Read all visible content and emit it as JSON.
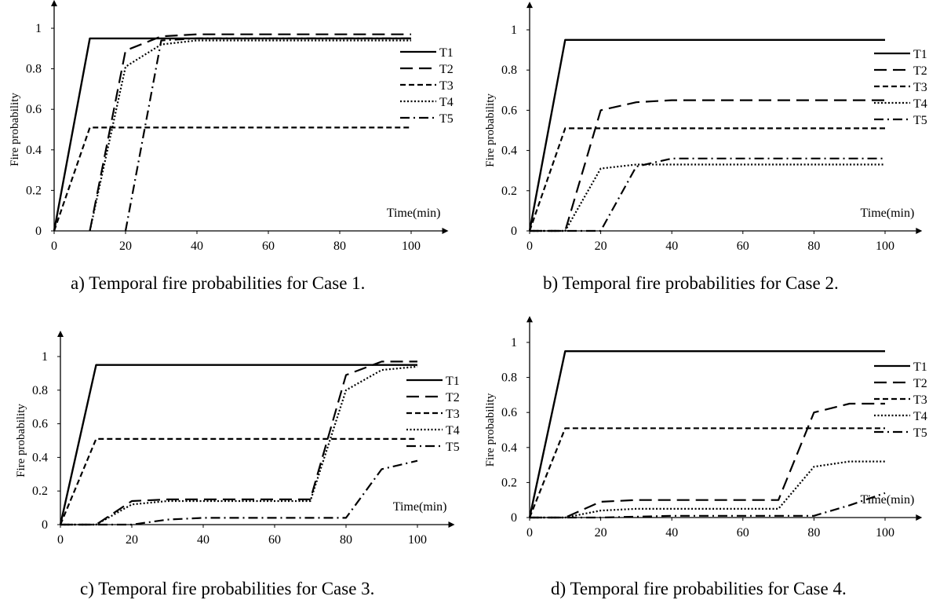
{
  "chart_data": [
    {
      "type": "line",
      "caption": "a) Temporal fire probabilities for Case 1.",
      "ylabel": "Fire probability",
      "xlabel": "Time(min)",
      "xticks": [
        0,
        20,
        40,
        60,
        80,
        100
      ],
      "yticks": [
        "0",
        "0.2",
        "0.4",
        "0.6",
        "0.8",
        "1"
      ],
      "xlim": [
        0,
        110
      ],
      "ylim": [
        0,
        1.07
      ],
      "legend_position": "right",
      "series": [
        {
          "name": "T1",
          "style": "solid",
          "x": [
            0,
            10,
            100
          ],
          "y": [
            0,
            0.95,
            0.95
          ]
        },
        {
          "name": "T2",
          "style": "long-dash",
          "x": [
            10,
            20,
            30,
            40,
            100
          ],
          "y": [
            0,
            0.89,
            0.96,
            0.97,
            0.97
          ]
        },
        {
          "name": "T3",
          "style": "dash",
          "x": [
            0,
            10,
            100
          ],
          "y": [
            0,
            0.51,
            0.51
          ]
        },
        {
          "name": "T4",
          "style": "dot",
          "x": [
            10,
            20,
            30,
            40,
            100
          ],
          "y": [
            0,
            0.81,
            0.92,
            0.94,
            0.94
          ]
        },
        {
          "name": "T5",
          "style": "dash-dot",
          "x": [
            20,
            30,
            40,
            100
          ],
          "y": [
            0,
            0.94,
            0.95,
            0.95
          ]
        }
      ]
    },
    {
      "type": "line",
      "caption": "b) Temporal fire probabilities for Case 2.",
      "ylabel": "Fire probability",
      "xlabel": "Time(min)",
      "xticks": [
        0,
        20,
        40,
        60,
        80,
        100
      ],
      "yticks": [
        "0",
        "0.2",
        "0.4",
        "0.6",
        "0.8",
        "1"
      ],
      "xlim": [
        0,
        110
      ],
      "ylim": [
        0,
        1.07
      ],
      "legend_position": "right",
      "series": [
        {
          "name": "T1",
          "style": "solid",
          "x": [
            0,
            10,
            100
          ],
          "y": [
            0,
            0.95,
            0.95
          ]
        },
        {
          "name": "T2",
          "style": "long-dash",
          "x": [
            0,
            10,
            20,
            30,
            40,
            100
          ],
          "y": [
            0,
            0,
            0.6,
            0.64,
            0.65,
            0.65
          ]
        },
        {
          "name": "T3",
          "style": "dash",
          "x": [
            0,
            10,
            100
          ],
          "y": [
            0,
            0.51,
            0.51
          ]
        },
        {
          "name": "T4",
          "style": "dot",
          "x": [
            0,
            10,
            20,
            30,
            100
          ],
          "y": [
            0,
            0,
            0.31,
            0.33,
            0.33
          ]
        },
        {
          "name": "T5",
          "style": "dash-dot",
          "x": [
            0,
            20,
            30,
            40,
            100
          ],
          "y": [
            0,
            0,
            0.32,
            0.36,
            0.36
          ]
        }
      ]
    },
    {
      "type": "line",
      "caption": "c) Temporal fire probabilities for Case 3.",
      "ylabel": "Fire probability",
      "xlabel": "Time(min)",
      "xticks": [
        0,
        20,
        40,
        60,
        80,
        100
      ],
      "yticks": [
        "0",
        "0.2",
        "0.4",
        "0.6",
        "0.8",
        "1"
      ],
      "xlim": [
        0,
        110
      ],
      "ylim": [
        0,
        1.07
      ],
      "legend_position": "right",
      "series": [
        {
          "name": "T1",
          "style": "solid",
          "x": [
            0,
            10,
            100
          ],
          "y": [
            0,
            0.95,
            0.95
          ]
        },
        {
          "name": "T2",
          "style": "long-dash",
          "x": [
            0,
            10,
            20,
            30,
            70,
            80,
            90,
            100
          ],
          "y": [
            0,
            0,
            0.14,
            0.15,
            0.15,
            0.89,
            0.97,
            0.97
          ]
        },
        {
          "name": "T3",
          "style": "dash",
          "x": [
            0,
            10,
            100
          ],
          "y": [
            0,
            0.51,
            0.51
          ]
        },
        {
          "name": "T4",
          "style": "dot",
          "x": [
            0,
            10,
            20,
            30,
            70,
            80,
            90,
            100
          ],
          "y": [
            0,
            0,
            0.12,
            0.14,
            0.14,
            0.8,
            0.92,
            0.94
          ]
        },
        {
          "name": "T5",
          "style": "dash-dot",
          "x": [
            0,
            20,
            30,
            40,
            80,
            90,
            100
          ],
          "y": [
            0,
            0,
            0.03,
            0.04,
            0.04,
            0.33,
            0.38
          ]
        }
      ]
    },
    {
      "type": "line",
      "caption": "d) Temporal fire probabilities for Case 4.",
      "ylabel": "Fire probability",
      "xlabel": "Time(min)",
      "xticks": [
        0,
        20,
        40,
        60,
        80,
        100
      ],
      "yticks": [
        "0",
        "0.2",
        "0.4",
        "0.6",
        "0.8",
        "1"
      ],
      "xlim": [
        0,
        110
      ],
      "ylim": [
        0,
        1.07
      ],
      "legend_position": "right",
      "series": [
        {
          "name": "T1",
          "style": "solid",
          "x": [
            0,
            10,
            100
          ],
          "y": [
            0,
            0.95,
            0.95
          ]
        },
        {
          "name": "T2",
          "style": "long-dash",
          "x": [
            0,
            10,
            20,
            30,
            70,
            80,
            90,
            100
          ],
          "y": [
            0,
            0,
            0.09,
            0.1,
            0.1,
            0.6,
            0.65,
            0.65
          ]
        },
        {
          "name": "T3",
          "style": "dash",
          "x": [
            0,
            10,
            100
          ],
          "y": [
            0,
            0.51,
            0.51
          ]
        },
        {
          "name": "T4",
          "style": "dot",
          "x": [
            0,
            10,
            20,
            30,
            70,
            80,
            90,
            100
          ],
          "y": [
            0,
            0,
            0.04,
            0.05,
            0.05,
            0.29,
            0.32,
            0.32
          ]
        },
        {
          "name": "T5",
          "style": "dash-dot",
          "x": [
            0,
            20,
            40,
            80,
            90,
            100
          ],
          "y": [
            0,
            0,
            0.01,
            0.01,
            0.07,
            0.14
          ]
        }
      ]
    }
  ]
}
